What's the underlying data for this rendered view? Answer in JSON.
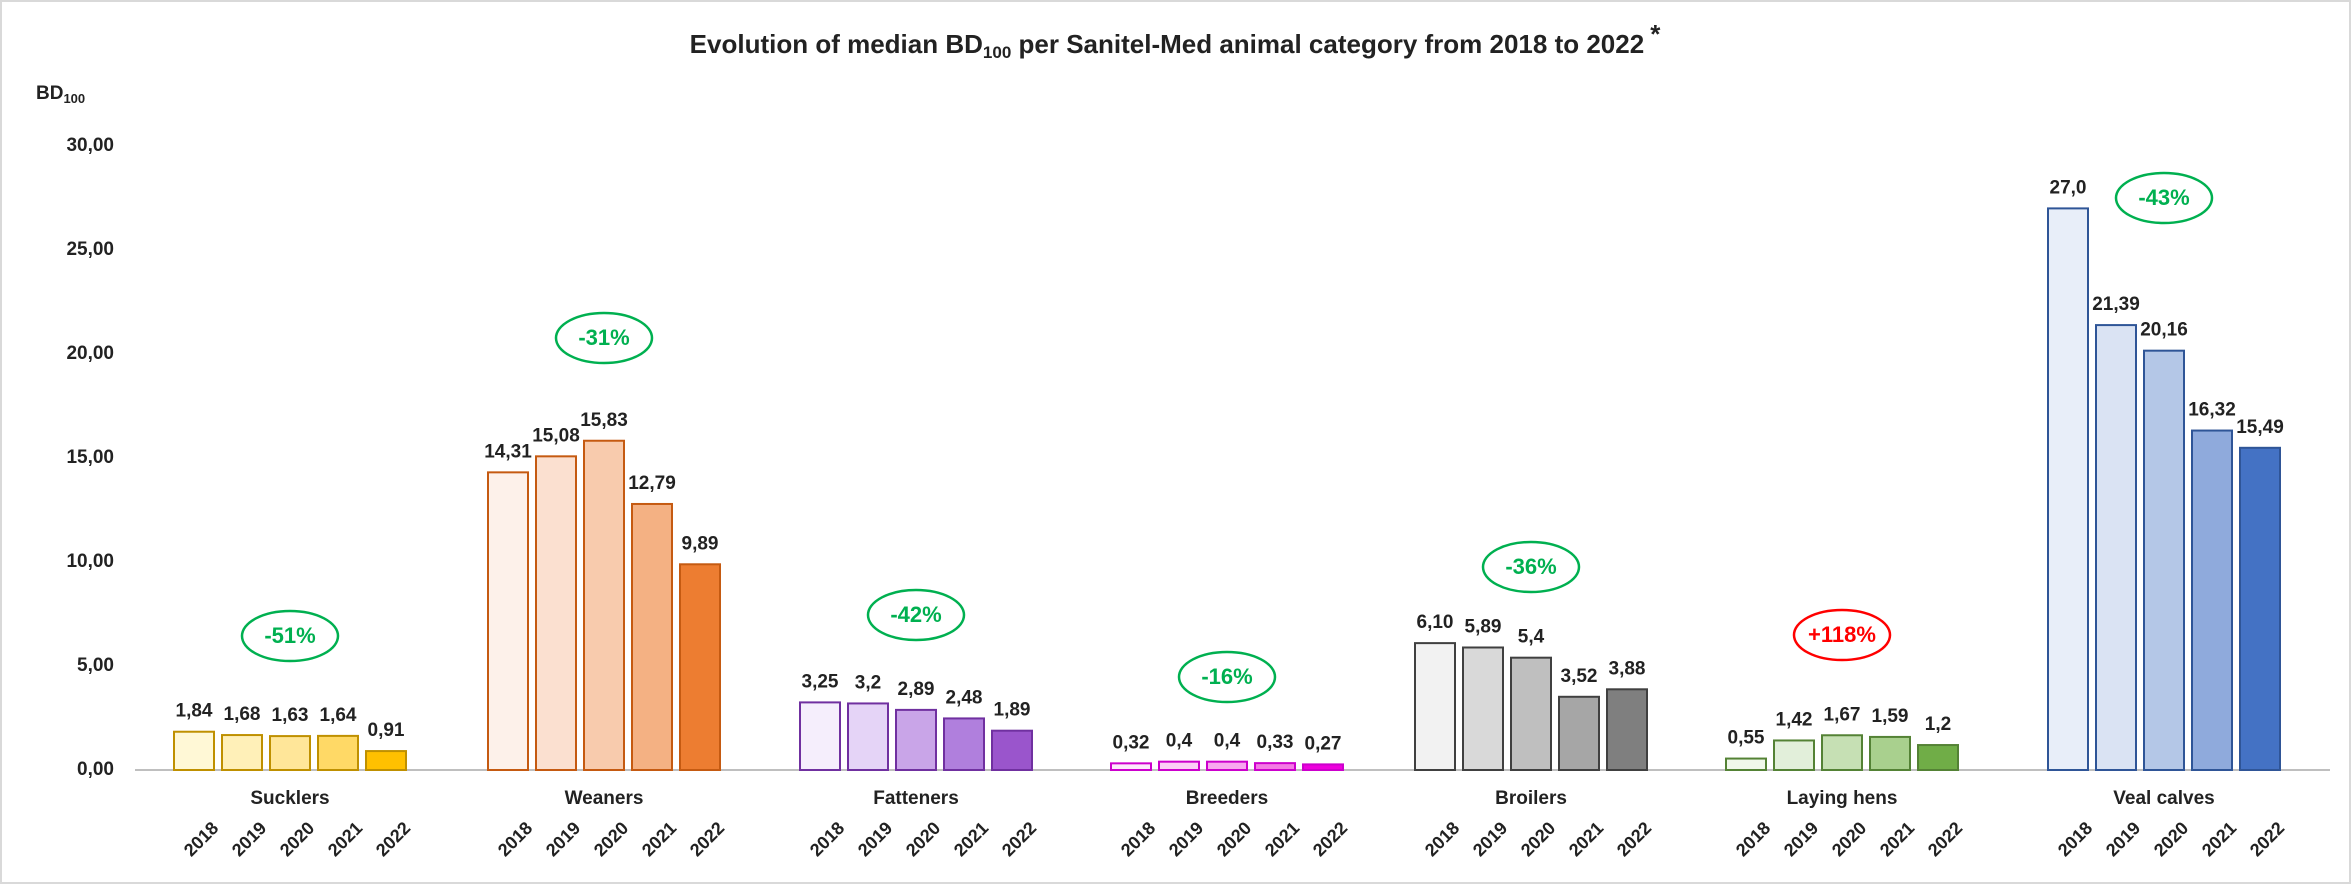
{
  "chart_data": {
    "type": "grouped_bar",
    "title": "Evolution of median BD",
    "title_sub": "100",
    "title_rest": " per Sanitel-Med animal category from 2018 to 2022",
    "title_mark": "*",
    "ylabel": "BD",
    "ylabel_sub": "100",
    "ylim": [
      0,
      30
    ],
    "yticks": [
      {
        "value": 0,
        "label": "0,00"
      },
      {
        "value": 5,
        "label": "5,00"
      },
      {
        "value": 10,
        "label": "10,00"
      },
      {
        "value": 15,
        "label": "15,00"
      },
      {
        "value": 20,
        "label": "20,00"
      },
      {
        "value": 25,
        "label": "25,00"
      },
      {
        "value": 30,
        "label": "30,00"
      }
    ],
    "grid": false,
    "groups": [
      {
        "name": "Sucklers",
        "years": [
          "2018",
          "2019",
          "2020",
          "2021",
          "2022"
        ],
        "values": [
          1.84,
          1.68,
          1.63,
          1.64,
          0.91
        ],
        "value_labels": [
          "1,84",
          "1,68",
          "1,63",
          "1,64",
          "0,91"
        ],
        "colors": [
          "#fff8d6",
          "#fff0b8",
          "#ffe699",
          "#ffd966",
          "#ffc000"
        ],
        "stroke": "#bf9000",
        "change": "-51%",
        "change_color": "#00b050"
      },
      {
        "name": "Weaners",
        "years": [
          "2018",
          "2019",
          "2020",
          "2021",
          "2022"
        ],
        "values": [
          14.31,
          15.08,
          15.83,
          12.79,
          9.89
        ],
        "value_labels": [
          "14,31",
          "15,08",
          "15,83",
          "12,79",
          "9,89"
        ],
        "colors": [
          "#fdf1ea",
          "#fbe0d0",
          "#f8cbad",
          "#f4b183",
          "#ed7d31"
        ],
        "stroke": "#c55a11",
        "change": "-31%",
        "change_color": "#00b050"
      },
      {
        "name": "Fatteners",
        "years": [
          "2018",
          "2019",
          "2020",
          "2021",
          "2022"
        ],
        "values": [
          3.25,
          3.2,
          2.89,
          2.48,
          1.89
        ],
        "value_labels": [
          "3,25",
          "3,2",
          "2,89",
          "2,48",
          "1,89"
        ],
        "colors": [
          "#f5eefc",
          "#e5d4f7",
          "#c9a5e8",
          "#b07fdd",
          "#9a55cc"
        ],
        "stroke": "#7030a0",
        "change": "-42%",
        "change_color": "#00b050"
      },
      {
        "name": "Breeders",
        "years": [
          "2018",
          "2019",
          "2020",
          "2021",
          "2022"
        ],
        "values": [
          0.32,
          0.4,
          0.4,
          0.33,
          0.27
        ],
        "value_labels": [
          "0,32",
          "0,4",
          "0,4",
          "0,33",
          "0,27"
        ],
        "colors": [
          "#fde8fb",
          "#fbd0f6",
          "#f8a8ef",
          "#f47ae4",
          "#ee00dd"
        ],
        "stroke": "#cc00cc",
        "change": "-16%",
        "change_color": "#00b050"
      },
      {
        "name": "Broilers",
        "years": [
          "2018",
          "2019",
          "2020",
          "2021",
          "2022"
        ],
        "values": [
          6.1,
          5.89,
          5.4,
          3.52,
          3.88
        ],
        "value_labels": [
          "6,10",
          "5,89",
          "5,4",
          "3,52",
          "3,88"
        ],
        "colors": [
          "#f2f2f2",
          "#d9d9d9",
          "#bfbfbf",
          "#a6a6a6",
          "#7f7f7f"
        ],
        "stroke": "#404040",
        "change": "-36%",
        "change_color": "#00b050"
      },
      {
        "name": "Laying hens",
        "years": [
          "2018",
          "2019",
          "2020",
          "2021",
          "2022"
        ],
        "values": [
          0.55,
          1.42,
          1.67,
          1.59,
          1.2
        ],
        "value_labels": [
          "0,55",
          "1,42",
          "1,67",
          "1,59",
          "1,2"
        ],
        "colors": [
          "#f0f7ea",
          "#e2efda",
          "#c6e0b4",
          "#a9d08e",
          "#70ad47"
        ],
        "stroke": "#548235",
        "change": "+118%",
        "change_color": "#ff0000"
      },
      {
        "name": "Veal calves",
        "years": [
          "2018",
          "2019",
          "2020",
          "2021",
          "2022"
        ],
        "values": [
          27.0,
          21.39,
          20.16,
          16.32,
          15.49
        ],
        "value_labels": [
          "27,0",
          "21,39",
          "20,16",
          "16,32",
          "15,49"
        ],
        "colors": [
          "#e8eef9",
          "#dae3f3",
          "#b4c7e7",
          "#8faadc",
          "#4472c4"
        ],
        "stroke": "#2f5597",
        "change": "-43%",
        "change_color": "#00b050"
      }
    ]
  }
}
